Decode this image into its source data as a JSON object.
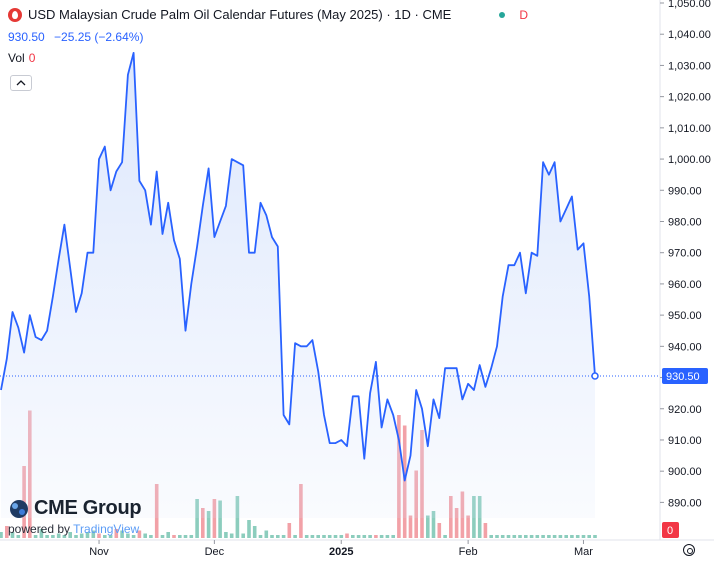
{
  "header": {
    "title": "USD Malaysian Crude Palm Oil Calendar Futures (May 2025) · 1D · CME",
    "status_tag": "D",
    "price": "930.50",
    "change": "−25.25 (−2.64%)",
    "vol_label": "Vol",
    "vol_value": "0"
  },
  "branding": {
    "logo_text": "CME Group",
    "powered_by": "powered by",
    "platform": "TradingView"
  },
  "colors": {
    "line": "#2962ff",
    "area_top": "#dbe6fc",
    "up_bar": "#8ccdbd",
    "down_bar": "#f2a1a7",
    "last_price_label": "#2962ff",
    "volume_label": "#f23645"
  },
  "chart_data": {
    "type": "line",
    "series": [
      {
        "values": [
          926,
          936,
          951,
          946,
          938,
          950,
          943,
          942,
          945,
          956,
          968,
          979,
          965,
          951,
          957,
          970,
          970,
          1000,
          1004,
          990,
          996,
          999,
          1027,
          1034,
          993,
          990,
          979,
          996,
          976,
          986,
          974,
          968,
          945,
          960,
          972,
          985,
          997,
          975,
          980,
          985,
          1000,
          999,
          998,
          970,
          970,
          986,
          982,
          975,
          972,
          918,
          915,
          941,
          940,
          940,
          942,
          932,
          918,
          909,
          909,
          910,
          908,
          924,
          924,
          904,
          925,
          935,
          914,
          923,
          918,
          910,
          897,
          905,
          926,
          920,
          908,
          923,
          917,
          933,
          933,
          933,
          923,
          928,
          926,
          934,
          927,
          933,
          940,
          956,
          966,
          966,
          970,
          957,
          970,
          969,
          999,
          995,
          999,
          980,
          984,
          988,
          971,
          973,
          956,
          930.5
        ]
      }
    ],
    "volume": [
      {
        "d": "up",
        "v": 4
      },
      {
        "d": "down",
        "v": 8
      },
      {
        "d": "up",
        "v": 4
      },
      {
        "d": "up",
        "v": 2
      },
      {
        "d": "down",
        "v": 48
      },
      {
        "d": "down",
        "v": 85
      },
      {
        "d": "up",
        "v": 2
      },
      {
        "d": "up",
        "v": 6
      },
      {
        "d": "up",
        "v": 2
      },
      {
        "d": "up",
        "v": 2
      },
      {
        "d": "up",
        "v": 3
      },
      {
        "d": "up",
        "v": 2
      },
      {
        "d": "up",
        "v": 4
      },
      {
        "d": "up",
        "v": 2
      },
      {
        "d": "up",
        "v": 3
      },
      {
        "d": "up",
        "v": 4
      },
      {
        "d": "up",
        "v": 5
      },
      {
        "d": "down",
        "v": 3
      },
      {
        "d": "up",
        "v": 2
      },
      {
        "d": "up",
        "v": 2
      },
      {
        "d": "down",
        "v": 6
      },
      {
        "d": "up",
        "v": 5
      },
      {
        "d": "up",
        "v": 3
      },
      {
        "d": "up",
        "v": 2
      },
      {
        "d": "down",
        "v": 5
      },
      {
        "d": "up",
        "v": 3
      },
      {
        "d": "up",
        "v": 2
      },
      {
        "d": "down",
        "v": 36
      },
      {
        "d": "up",
        "v": 2
      },
      {
        "d": "up",
        "v": 4
      },
      {
        "d": "down",
        "v": 2
      },
      {
        "d": "up",
        "v": 2
      },
      {
        "d": "up",
        "v": 2
      },
      {
        "d": "up",
        "v": 2
      },
      {
        "d": "up",
        "v": 26
      },
      {
        "d": "down",
        "v": 20
      },
      {
        "d": "up",
        "v": 18
      },
      {
        "d": "down",
        "v": 26
      },
      {
        "d": "up",
        "v": 25
      },
      {
        "d": "up",
        "v": 4
      },
      {
        "d": "up",
        "v": 3
      },
      {
        "d": "up",
        "v": 28
      },
      {
        "d": "up",
        "v": 3
      },
      {
        "d": "up",
        "v": 12
      },
      {
        "d": "up",
        "v": 8
      },
      {
        "d": "up",
        "v": 2
      },
      {
        "d": "up",
        "v": 5
      },
      {
        "d": "up",
        "v": 2
      },
      {
        "d": "up",
        "v": 2
      },
      {
        "d": "up",
        "v": 2
      },
      {
        "d": "down",
        "v": 10
      },
      {
        "d": "up",
        "v": 2
      },
      {
        "d": "down",
        "v": 36
      },
      {
        "d": "up",
        "v": 2
      },
      {
        "d": "up",
        "v": 2
      },
      {
        "d": "up",
        "v": 2
      },
      {
        "d": "up",
        "v": 2
      },
      {
        "d": "up",
        "v": 2
      },
      {
        "d": "up",
        "v": 2
      },
      {
        "d": "up",
        "v": 2
      },
      {
        "d": "down",
        "v": 3
      },
      {
        "d": "up",
        "v": 2
      },
      {
        "d": "up",
        "v": 2
      },
      {
        "d": "up",
        "v": 2
      },
      {
        "d": "up",
        "v": 2
      },
      {
        "d": "down",
        "v": 2
      },
      {
        "d": "up",
        "v": 2
      },
      {
        "d": "up",
        "v": 2
      },
      {
        "d": "up",
        "v": 2
      },
      {
        "d": "down",
        "v": 82
      },
      {
        "d": "down",
        "v": 75
      },
      {
        "d": "down",
        "v": 15
      },
      {
        "d": "down",
        "v": 45
      },
      {
        "d": "down",
        "v": 72
      },
      {
        "d": "up",
        "v": 15
      },
      {
        "d": "up",
        "v": 18
      },
      {
        "d": "down",
        "v": 10
      },
      {
        "d": "up",
        "v": 2
      },
      {
        "d": "down",
        "v": 28
      },
      {
        "d": "down",
        "v": 20
      },
      {
        "d": "down",
        "v": 31
      },
      {
        "d": "down",
        "v": 15
      },
      {
        "d": "up",
        "v": 28
      },
      {
        "d": "up",
        "v": 28
      },
      {
        "d": "down",
        "v": 10
      },
      {
        "d": "up",
        "v": 2
      },
      {
        "d": "up",
        "v": 2
      },
      {
        "d": "up",
        "v": 2
      },
      {
        "d": "up",
        "v": 2
      },
      {
        "d": "up",
        "v": 2
      },
      {
        "d": "up",
        "v": 2
      },
      {
        "d": "up",
        "v": 2
      },
      {
        "d": "up",
        "v": 2
      },
      {
        "d": "up",
        "v": 2
      },
      {
        "d": "up",
        "v": 2
      },
      {
        "d": "up",
        "v": 2
      },
      {
        "d": "up",
        "v": 2
      },
      {
        "d": "up",
        "v": 2
      },
      {
        "d": "up",
        "v": 2
      },
      {
        "d": "up",
        "v": 2
      },
      {
        "d": "up",
        "v": 2
      },
      {
        "d": "up",
        "v": 2
      },
      {
        "d": "up",
        "v": 2
      },
      {
        "d": "up",
        "v": 2
      }
    ],
    "x_tick_labels": [
      {
        "label": "Nov",
        "index": 17
      },
      {
        "label": "Dec",
        "index": 37
      },
      {
        "label": "2025",
        "index": 59
      },
      {
        "label": "Feb",
        "index": 81
      },
      {
        "label": "Mar",
        "index": 101
      }
    ],
    "y_ticks": [
      890,
      900,
      910,
      920,
      930,
      940,
      950,
      960,
      970,
      980,
      990,
      1000,
      1010,
      1020,
      1030,
      1040,
      1050
    ],
    "y_tick_labels": [
      "890.00",
      "900.00",
      "910.00",
      "920.00",
      "930.00",
      "940.00",
      "950.00",
      "960.00",
      "970.00",
      "980.00",
      "990.00",
      "1,000.00",
      "1,010.00",
      "1,020.00",
      "1,030.00",
      "1,040.00",
      "1,050.00"
    ],
    "ylim": [
      885,
      1050
    ],
    "last_price": 930.5,
    "last_price_label": "930.50",
    "volume_axis_label": "0",
    "grid": false,
    "scale": "linear"
  }
}
